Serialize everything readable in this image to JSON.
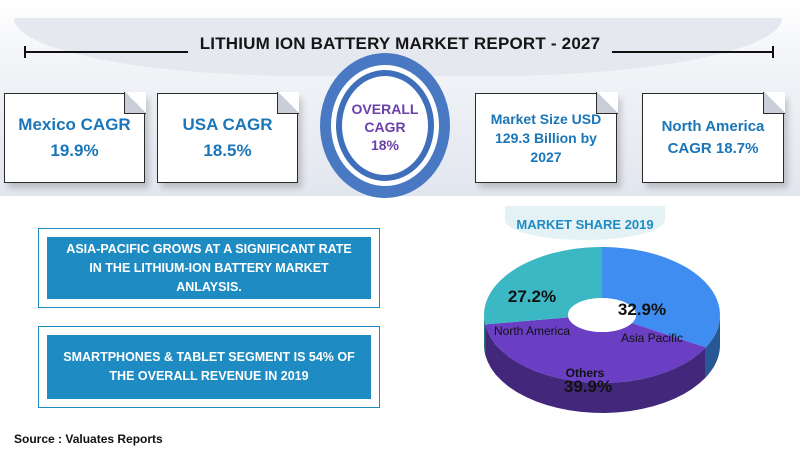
{
  "title": "LITHIUM ION BATTERY MARKET REPORT - 2027",
  "cards": {
    "mexico": "Mexico CAGR\n19.9%",
    "usa": "USA CAGR\n18.5%",
    "overall": "OVERALL\nCAGR\n18%",
    "market_size": "Market Size USD\n129.3 Billion by\n2027",
    "north_america": "North America\nCAGR 18.7%"
  },
  "notes": {
    "asia_pacific": "ASIA-PACIFIC GROWS AT A SIGNIFICANT RATE\nIN THE LITHIUM-ION BATTERY MARKET\nANLAYSIS.",
    "smartphones": "SMARTPHONES & TABLET SEGMENT IS 54% OF\nTHE OVERALL REVENUE IN 2019"
  },
  "source": "Source : Valuates Reports",
  "colors": {
    "accent_blue": "#1e8bc3",
    "card_text": "#1a76b8",
    "ring_blue": "#3f6eba",
    "overall_text": "#6a3fa8"
  },
  "chart_data": {
    "type": "pie",
    "title": "MARKET SHARE 2019",
    "slices": [
      {
        "label": "Asia Pacific",
        "value_label": "32.9%",
        "value": 32.9,
        "color": "#3f8df0"
      },
      {
        "label": "Others",
        "value_label": "39.9%",
        "value": 39.9,
        "color": "#6a3fc4"
      },
      {
        "label": "North America",
        "value_label": "27.2%",
        "value": 27.2,
        "color": "#3cb7c4"
      }
    ],
    "style": "3d-donut"
  }
}
